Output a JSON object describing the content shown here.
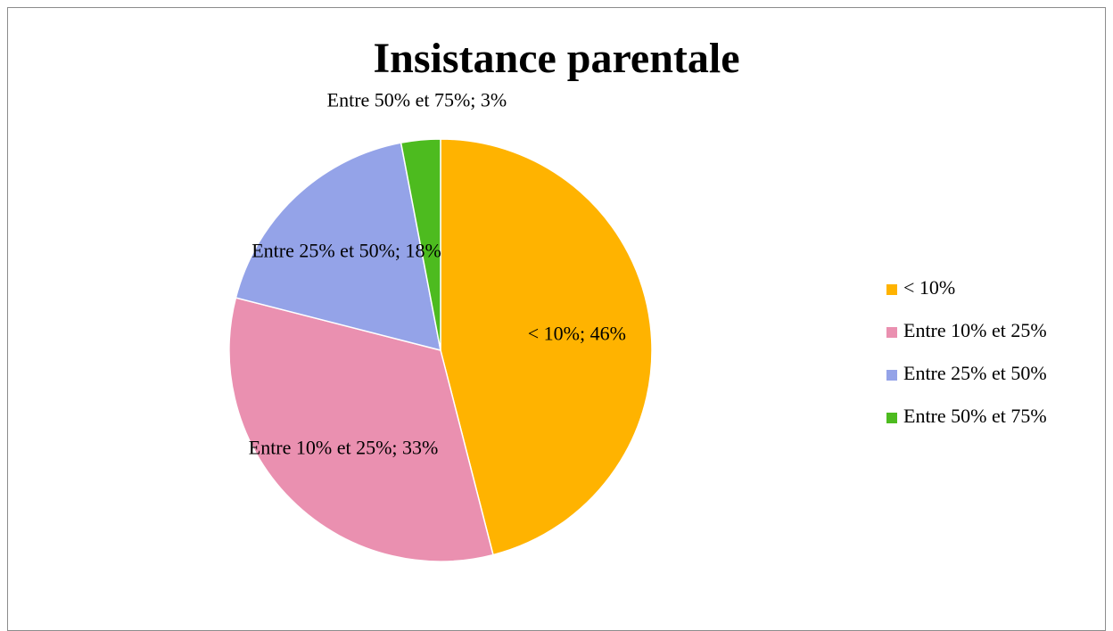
{
  "chart_data": {
    "type": "pie",
    "title": "Insistance parentale",
    "categories": [
      "< 10%",
      "Entre 10% et 25%",
      "Entre 25% et 50%",
      "Entre 50% et 75%"
    ],
    "values": [
      46,
      33,
      18,
      3
    ],
    "value_labels": [
      "< 10%; 46%",
      "Entre 10% et 25%; 33%",
      "Entre 25% et 50%; 18%",
      "Entre 50% et 75%; 3%"
    ],
    "colors": [
      "#FFB300",
      "#EA90B0",
      "#94A3E8",
      "#4DBB1F"
    ],
    "legend": "right"
  }
}
